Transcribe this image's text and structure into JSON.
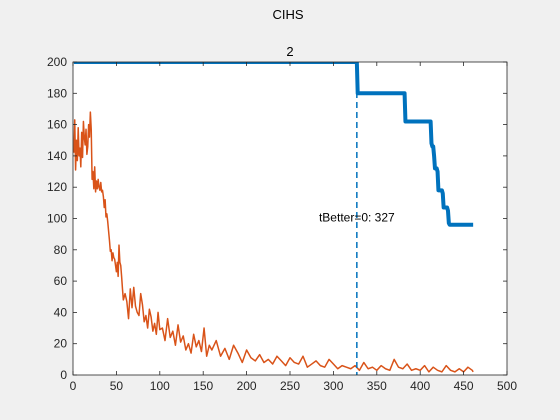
{
  "window": {
    "title": "CIHS",
    "background_color": "#f0f0f0"
  },
  "chart_data": {
    "type": "line",
    "title": "2",
    "xlabel": "",
    "ylabel": "",
    "xlim": [
      0,
      500
    ],
    "ylim": [
      0,
      200
    ],
    "xticks": [
      0,
      50,
      100,
      150,
      200,
      250,
      300,
      350,
      400,
      450,
      500
    ],
    "yticks": [
      0,
      20,
      40,
      60,
      80,
      100,
      120,
      140,
      160,
      180,
      200
    ],
    "grid": false,
    "legend": "none",
    "series": [
      {
        "color": "#0072bd",
        "line_style": "solid-thick",
        "x": [
          1,
          327,
          328,
          382,
          383,
          411,
          412,
          413,
          414,
          415,
          416,
          417,
          418,
          419,
          420,
          421,
          422,
          423,
          424,
          425,
          426,
          427,
          428,
          429,
          430,
          431,
          432,
          433,
          434,
          435,
          436,
          437,
          438,
          439,
          440,
          441,
          442,
          443,
          444,
          445,
          446,
          447,
          448,
          449,
          450,
          451,
          452,
          453,
          454,
          455,
          456,
          457,
          458,
          459,
          460,
          461
        ],
        "y": [
          200,
          200,
          180,
          180,
          162,
          162,
          162,
          148,
          146,
          146,
          140,
          132,
          132,
          132,
          130,
          118,
          118,
          118,
          118,
          118,
          116,
          107,
          107,
          107,
          107,
          107,
          105,
          97,
          96,
          96,
          96,
          96,
          96,
          96,
          96,
          96,
          96,
          96,
          96,
          96,
          96,
          96,
          96,
          96,
          96,
          96,
          96,
          96,
          96,
          96,
          96,
          96,
          96,
          96,
          96,
          96
        ]
      },
      {
        "color": "#d95319",
        "line_style": "solid",
        "x": [
          1,
          2,
          3,
          4,
          5,
          6,
          7,
          8,
          9,
          10,
          11,
          12,
          13,
          14,
          15,
          16,
          17,
          18,
          19,
          20,
          21,
          22,
          23,
          24,
          25,
          26,
          27,
          28,
          29,
          30,
          31,
          32,
          33,
          34,
          35,
          36,
          37,
          38,
          39,
          40,
          41,
          42,
          43,
          44,
          45,
          46,
          47,
          48,
          49,
          50,
          51,
          52,
          53,
          54,
          55,
          56,
          57,
          58,
          59,
          60,
          62,
          64,
          66,
          68,
          70,
          72,
          74,
          76,
          78,
          80,
          82,
          84,
          86,
          88,
          90,
          92,
          94,
          96,
          98,
          100,
          103,
          106,
          109,
          112,
          115,
          118,
          121,
          124,
          127,
          130,
          133,
          136,
          139,
          142,
          145,
          148,
          151,
          154,
          157,
          160,
          165,
          170,
          175,
          180,
          185,
          190,
          195,
          200,
          205,
          210,
          215,
          220,
          225,
          230,
          235,
          240,
          245,
          250,
          255,
          260,
          265,
          270,
          275,
          280,
          285,
          290,
          295,
          300,
          305,
          310,
          315,
          320,
          325,
          330,
          335,
          340,
          345,
          350,
          355,
          360,
          365,
          370,
          375,
          380,
          385,
          390,
          395,
          400,
          405,
          410,
          415,
          420,
          425,
          430,
          435,
          440,
          445,
          450,
          455,
          460,
          461
        ],
        "y": [
          142,
          163,
          131,
          150,
          137,
          158,
          140,
          145,
          133,
          155,
          139,
          162,
          152,
          147,
          157,
          141,
          146,
          160,
          152,
          168,
          157,
          125,
          130,
          119,
          133,
          117,
          124,
          119,
          125,
          120,
          118,
          123,
          117,
          118,
          114,
          107,
          112,
          101,
          103,
          98,
          92,
          86,
          79,
          80,
          73,
          78,
          75,
          74,
          70,
          66,
          72,
          63,
          83,
          72,
          70,
          63,
          55,
          48,
          50,
          52,
          47,
          36,
          55,
          43,
          56,
          44,
          40,
          38,
          52,
          45,
          34,
          38,
          30,
          42,
          37,
          28,
          33,
          26,
          40,
          29,
          30,
          22,
          36,
          24,
          28,
          19,
          32,
          21,
          25,
          16,
          20,
          14,
          26,
          18,
          22,
          15,
          30,
          12,
          19,
          16,
          22,
          12,
          17,
          10,
          19,
          14,
          8,
          16,
          11,
          9,
          13,
          8,
          10,
          7,
          12,
          9,
          6,
          11,
          8,
          7,
          12,
          5,
          7,
          9,
          6,
          5,
          10,
          7,
          4,
          6,
          5,
          4,
          6,
          3,
          8,
          4,
          5,
          3,
          6,
          4,
          3,
          10,
          5,
          4,
          7,
          3,
          4,
          3,
          6,
          2,
          5,
          3,
          2,
          6,
          3,
          2,
          4,
          2,
          5,
          3,
          2
        ]
      }
    ],
    "vline": {
      "x": 327,
      "color": "#0072bd",
      "style": "dashed"
    },
    "annotations": [
      {
        "text": "tBetter=0: 327",
        "x": 327,
        "y": 98
      }
    ]
  }
}
